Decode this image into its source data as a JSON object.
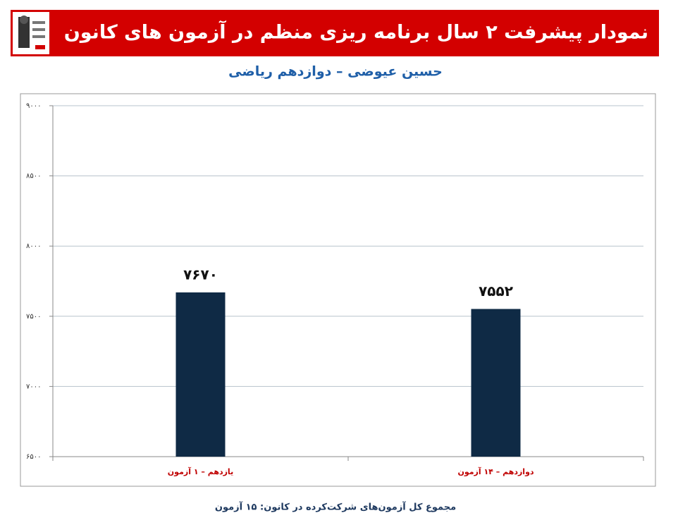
{
  "chart_data": {
    "type": "bar",
    "title": "نمودار پیشرفت ۲ سال برنامه ریزی منظم در آزمون های کانون",
    "subtitle": "حسین عیوضی – دوازدهم ریاضی",
    "categories": [
      "یازدهم – ۱ آزمون",
      "دوازدهم – ۱۴ آزمون"
    ],
    "values": [
      7670,
      7552
    ],
    "value_labels": [
      "۷۶۷۰",
      "۷۵۵۲"
    ],
    "color": "#0f2a45",
    "ylim": [
      6500,
      9000
    ],
    "yticks": [
      {
        "value": 6500,
        "label": "۶۵۰۰"
      },
      {
        "value": 7000,
        "label": "۷۰۰۰"
      },
      {
        "value": 7500,
        "label": "۷۵۰۰"
      },
      {
        "value": 8000,
        "label": "۸۰۰۰"
      },
      {
        "value": 8500,
        "label": "۸۵۰۰"
      },
      {
        "value": 9000,
        "label": "۹۰۰۰"
      }
    ],
    "grid": true,
    "footnote": "مجموع کل آزمون‌های شرکت‌کرده در کانون: ۱۵ آزمون"
  }
}
